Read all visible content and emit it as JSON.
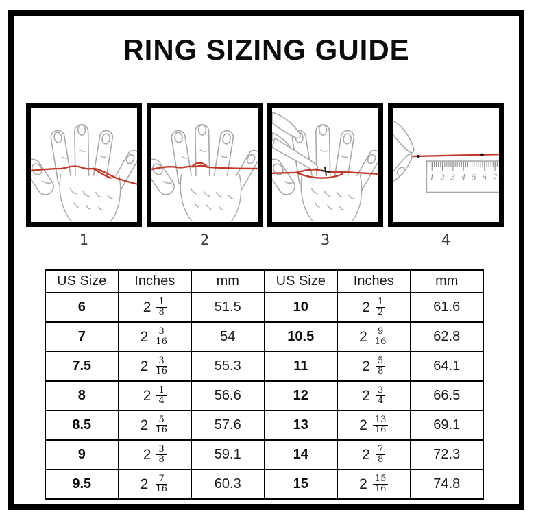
{
  "title": "RING SIZING GUIDE",
  "colors": {
    "frame_black": "#000000",
    "string_red": "#c0392b",
    "hand_outline": "#a8a8a8",
    "table_border": "#000000"
  },
  "panels": [
    {
      "step": "1"
    },
    {
      "step": "2"
    },
    {
      "step": "3"
    },
    {
      "step": "4",
      "ruler_numbers": [
        "1",
        "2",
        "3",
        "4",
        "5",
        "6",
        "7"
      ]
    }
  ],
  "table": {
    "headers": [
      "US Size",
      "Inches",
      "mm",
      "US Size",
      "Inches",
      "mm"
    ],
    "rows": [
      {
        "left": {
          "us": "6",
          "whole": "2",
          "num": "1",
          "den": "8",
          "mm": "51.5"
        },
        "right": {
          "us": "10",
          "whole": "2",
          "num": "1",
          "den": "2",
          "mm": "61.6"
        }
      },
      {
        "left": {
          "us": "7",
          "whole": "2",
          "num": "3",
          "den": "16",
          "mm": "54"
        },
        "right": {
          "us": "10.5",
          "whole": "2",
          "num": "9",
          "den": "16",
          "mm": "62.8"
        }
      },
      {
        "left": {
          "us": "7.5",
          "whole": "2",
          "num": "3",
          "den": "16",
          "mm": "55.3"
        },
        "right": {
          "us": "11",
          "whole": "2",
          "num": "5",
          "den": "8",
          "mm": "64.1"
        }
      },
      {
        "left": {
          "us": "8",
          "whole": "2",
          "num": "1",
          "den": "4",
          "mm": "56.6"
        },
        "right": {
          "us": "12",
          "whole": "2",
          "num": "3",
          "den": "4",
          "mm": "66.5"
        }
      },
      {
        "left": {
          "us": "8.5",
          "whole": "2",
          "num": "5",
          "den": "16",
          "mm": "57.6"
        },
        "right": {
          "us": "13",
          "whole": "2",
          "num": "13",
          "den": "16",
          "mm": "69.1"
        }
      },
      {
        "left": {
          "us": "9",
          "whole": "2",
          "num": "3",
          "den": "8",
          "mm": "59.1"
        },
        "right": {
          "us": "14",
          "whole": "2",
          "num": "7",
          "den": "8",
          "mm": "72.3"
        }
      },
      {
        "left": {
          "us": "9.5",
          "whole": "2",
          "num": "7",
          "den": "16",
          "mm": "60.3"
        },
        "right": {
          "us": "15",
          "whole": "2",
          "num": "15",
          "den": "16",
          "mm": "74.8"
        }
      }
    ]
  },
  "chart_data": {
    "type": "table",
    "title": "RING SIZING GUIDE",
    "columns": [
      "US Size",
      "Inches",
      "mm",
      "US Size",
      "Inches",
      "mm"
    ],
    "rows": [
      [
        "6",
        "2 1/8",
        "51.5",
        "10",
        "2 1/2",
        "61.6"
      ],
      [
        "7",
        "2 3/16",
        "54",
        "10.5",
        "2 9/16",
        "62.8"
      ],
      [
        "7.5",
        "2 3/16",
        "55.3",
        "11",
        "2 5/8",
        "64.1"
      ],
      [
        "8",
        "2 1/4",
        "56.6",
        "12",
        "2 3/4",
        "66.5"
      ],
      [
        "8.5",
        "2 5/16",
        "57.6",
        "13",
        "2 13/16",
        "69.1"
      ],
      [
        "9",
        "2 3/8",
        "59.1",
        "14",
        "2 7/8",
        "72.3"
      ],
      [
        "9.5",
        "2 7/16",
        "60.3",
        "15",
        "2 15/16",
        "74.8"
      ]
    ]
  }
}
